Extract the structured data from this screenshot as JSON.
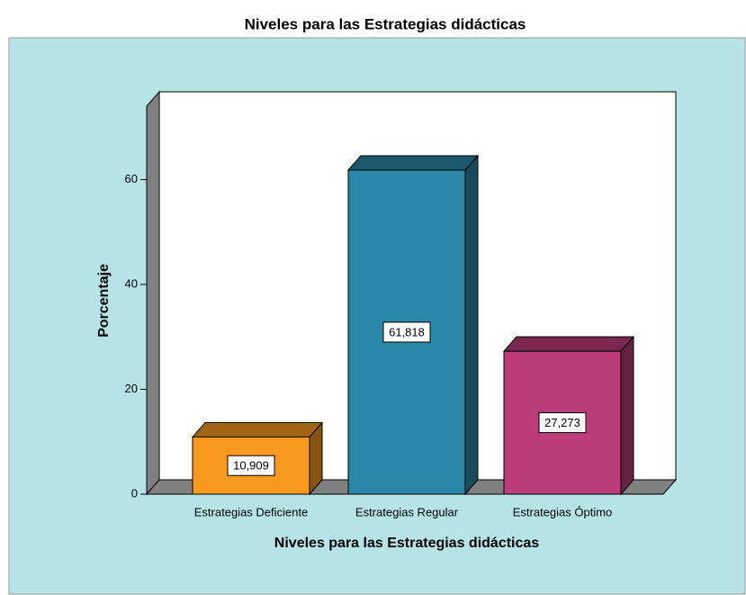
{
  "chart_data": {
    "type": "bar3d",
    "title": "Niveles para las Estrategias didácticas",
    "x_label": "Niveles para las Estrategias didácticas",
    "y_label": "Porcentaje",
    "categories": [
      "Estrategias Deficiente",
      "Estrategias Regular",
      "Estrategias Óptimo"
    ],
    "values": [
      10.909,
      61.818,
      27.273
    ],
    "value_labels": [
      "10,909",
      "61,818",
      "27,273"
    ],
    "colors": [
      "#f7991e",
      "#2b87a8",
      "#bb3d7a"
    ],
    "ylim": [
      0,
      74
    ],
    "yticks": [
      0,
      20,
      40,
      60
    ]
  }
}
